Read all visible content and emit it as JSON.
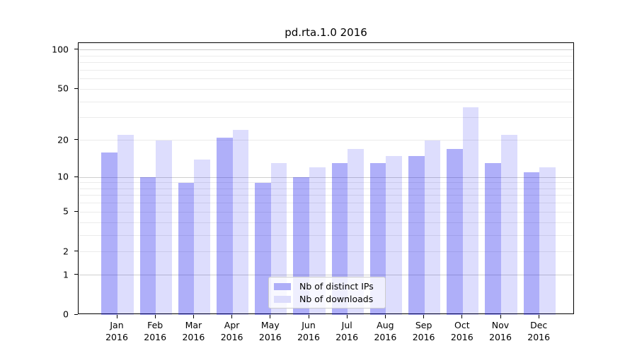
{
  "figure": {
    "title": "pd.rta.1.0 2016",
    "background": "#ffffff"
  },
  "chart_data": {
    "type": "bar",
    "title": "pd.rta.1.0 2016",
    "categories": [
      "Jan",
      "Feb",
      "Mar",
      "Apr",
      "May",
      "Jun",
      "Jul",
      "Aug",
      "Sep",
      "Oct",
      "Nov",
      "Dec"
    ],
    "year_label": "2016",
    "series": [
      {
        "name": "Nb of distinct IPs",
        "legend_color": "#aeaef8",
        "fill": "rgba(12,12,238,0.33)",
        "values": [
          16,
          10,
          9,
          21,
          9,
          10,
          13,
          13,
          15,
          17,
          13,
          11
        ]
      },
      {
        "name": "Nb of downloads",
        "legend_color": "#dcdcfc",
        "fill": "rgba(12,12,238,0.14)",
        "values": [
          22,
          20,
          14,
          24,
          13,
          12,
          17,
          15,
          20,
          36,
          22,
          12
        ]
      }
    ],
    "yscale": "log1p",
    "yticks": [
      0,
      1,
      2,
      5,
      10,
      20,
      50,
      100
    ],
    "major_gridlines": [
      1,
      10,
      100
    ],
    "minor_gridlines": [
      2,
      3,
      4,
      5,
      6,
      7,
      8,
      9,
      20,
      30,
      40,
      50,
      60,
      70,
      80,
      90
    ],
    "ylim": [
      0,
      113
    ],
    "xlabel": "",
    "ylabel": "",
    "grid": true,
    "legend_position": "lower-center"
  },
  "colors": {
    "bar_distinct_ips": "#aeaef8",
    "bar_downloads": "#dcdcfc",
    "grid_minor": "#ebebeb",
    "grid_major": "#cfcfcf",
    "spine": "#000000",
    "legend_border": "#cccccc",
    "text": "#000000"
  }
}
